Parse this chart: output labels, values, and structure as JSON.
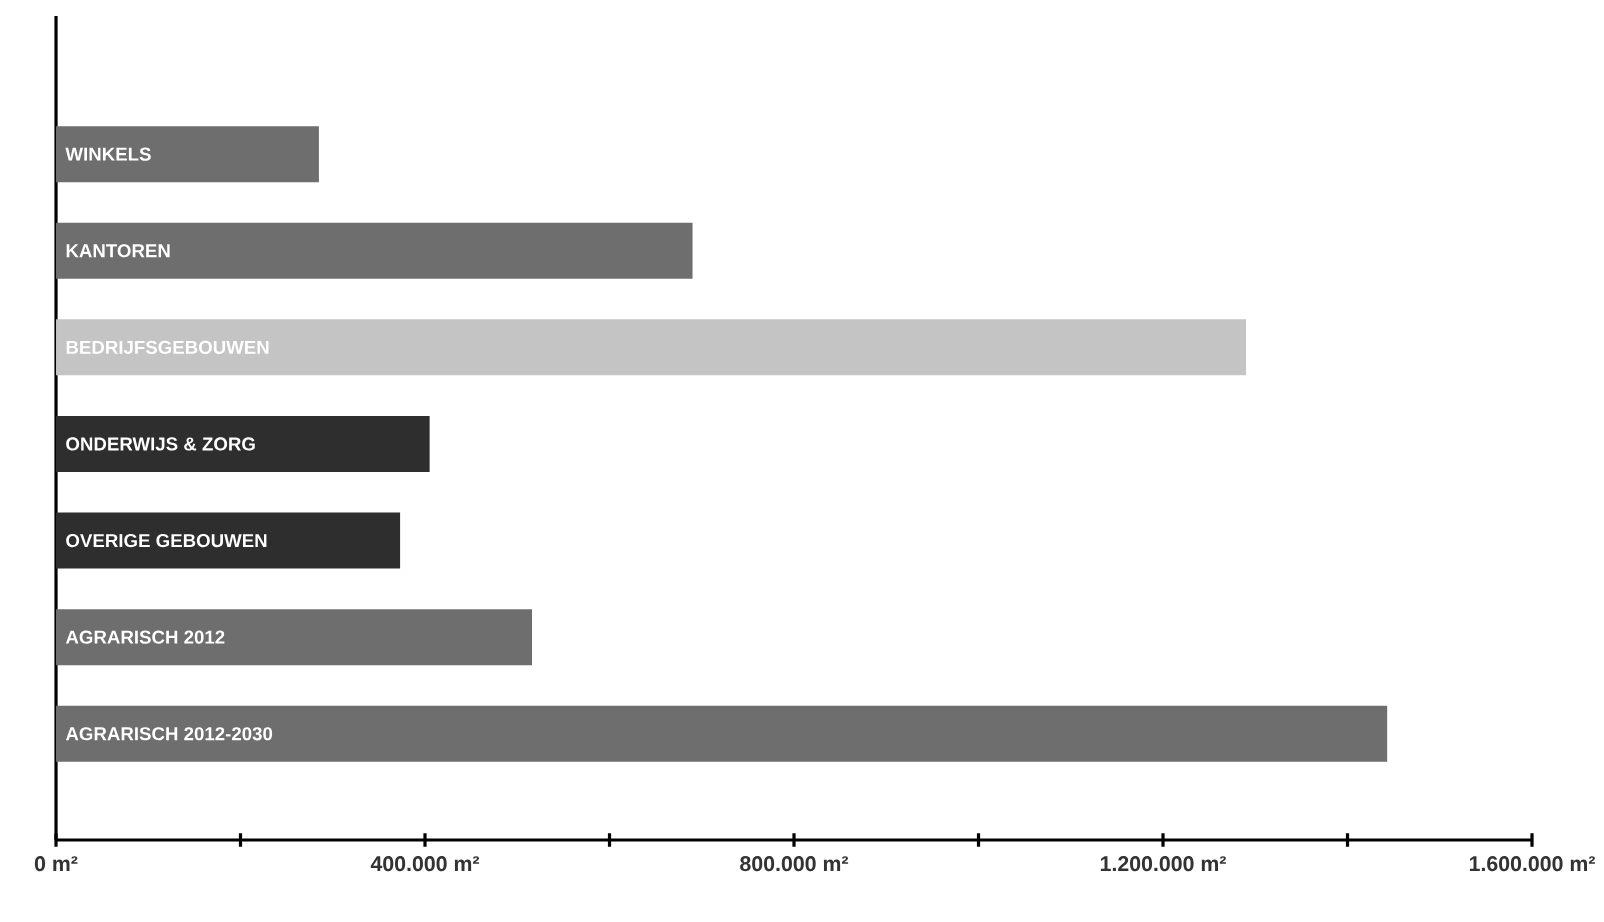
{
  "chart_data": {
    "type": "bar",
    "orientation": "horizontal",
    "categories": [
      "WINKELS",
      "KANTOREN",
      "BEDRIJFSGEBOUWEN",
      "ONDERWIJS & ZORG",
      "OVERIGE GEBOUWEN",
      "AGRARISCH 2012",
      "AGRARISCH 2012-2030"
    ],
    "values": [
      285000,
      690000,
      1290000,
      405000,
      373000,
      516000,
      1443000
    ],
    "colors": [
      "#6e6e6e",
      "#6e6e6e",
      "#c4c4c4",
      "#2e2e2e",
      "#2e2e2e",
      "#6e6e6e",
      "#6e6e6e"
    ],
    "xlim": [
      0,
      1600000
    ],
    "xticks": [
      {
        "value": 0,
        "label": "0 m²"
      },
      {
        "value": 200000,
        "label": null
      },
      {
        "value": 400000,
        "label": "400.000 m²"
      },
      {
        "value": 600000,
        "label": null
      },
      {
        "value": 800000,
        "label": "800.000 m²"
      },
      {
        "value": 1000000,
        "label": null
      },
      {
        "value": 1200000,
        "label": "1.200.000 m²"
      },
      {
        "value": 1400000,
        "label": null
      },
      {
        "value": 1600000,
        "label": "1.600.000 m²"
      }
    ]
  }
}
